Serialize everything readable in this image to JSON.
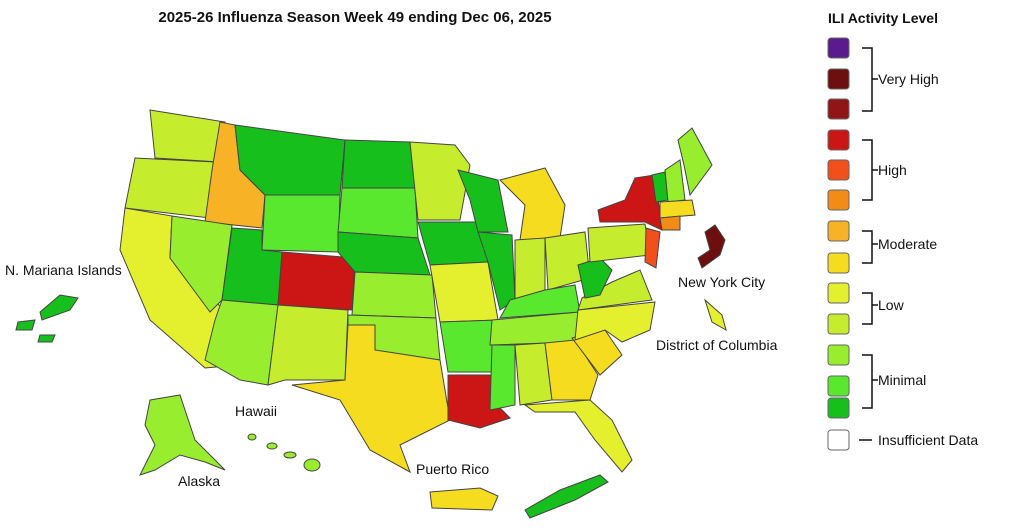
{
  "title": "2025-26 Influenza Season Week 49 ending Dec 06, 2025",
  "map_labels": [
    "N. Mariana Islands",
    "New York City",
    "District of Columbia",
    "Hawaii",
    "Alaska",
    "Puerto Rico"
  ],
  "legend": {
    "title": "ILI Activity Level",
    "swatches": [
      "#5b1a8e",
      "#6e0f0f",
      "#921515",
      "#cc1616",
      "#f2501a",
      "#f28c16",
      "#f7b225",
      "#f5dc1e",
      "#e4ef2e",
      "#c6ec2e",
      "#98ee2e",
      "#5ae82e",
      "#17bf1d",
      "#ffffff"
    ],
    "groups": [
      "Very High",
      "High",
      "Moderate",
      "Low",
      "Minimal",
      "Insufficient Data"
    ]
  }
}
